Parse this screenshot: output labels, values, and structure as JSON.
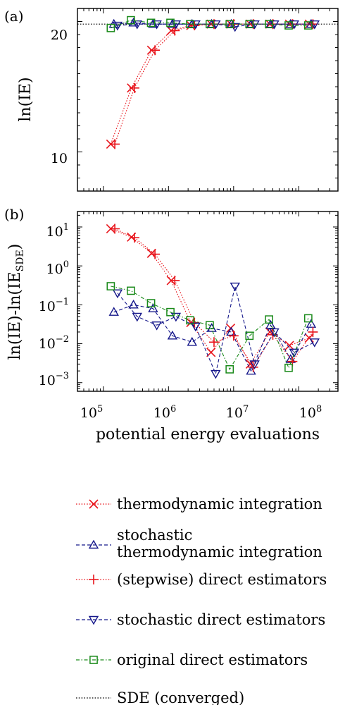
{
  "panel_labels": [
    "(a)",
    "(b)"
  ],
  "x_axis": {
    "label": "potential energy evaluations",
    "ticks": [
      {
        "base": "10",
        "exp": "5"
      },
      {
        "base": "10",
        "exp": "6"
      },
      {
        "base": "10",
        "exp": "7"
      },
      {
        "base": "10",
        "exp": "8"
      }
    ]
  },
  "panel_a": {
    "ylabel": "ln(IE)",
    "yticks": [
      "10",
      "20"
    ]
  },
  "panel_b": {
    "ylabel_main": "ln(IE)-ln(IE",
    "ylabel_sub": "SDE",
    "ylabel_end": ")",
    "yticks": [
      {
        "base": "10",
        "exp": "1"
      },
      {
        "base": "10",
        "exp": "0"
      },
      {
        "base": "10",
        "exp": "−1"
      },
      {
        "base": "10",
        "exp": "−2"
      },
      {
        "base": "10",
        "exp": "−3"
      }
    ]
  },
  "legend": [
    {
      "lines": [
        "thermodynamic integration"
      ],
      "marker": "x",
      "color": "#e8141b",
      "dash": "dot"
    },
    {
      "lines": [
        "stochastic",
        "thermodynamic integration"
      ],
      "marker": "triangle-up",
      "color": "#15178a",
      "dash": "dash"
    },
    {
      "lines": [
        "(stepwise) direct estimators"
      ],
      "marker": "plus",
      "color": "#e8141b",
      "dash": "dot"
    },
    {
      "lines": [
        "stochastic direct estimators"
      ],
      "marker": "triangle-down",
      "color": "#15178a",
      "dash": "dash"
    },
    {
      "lines": [
        "original direct estimators"
      ],
      "marker": "square",
      "color": "#1a8a1a",
      "dash": "dashdot"
    },
    {
      "lines": [
        "SDE (converged)"
      ],
      "marker": "none",
      "color": "#000000",
      "dash": "dot"
    }
  ],
  "chart_data": [
    {
      "panel": "(a)",
      "type": "line",
      "xscale": "log",
      "xlim": [
        40000,
        400000000
      ],
      "ylim": [
        7,
        21
      ],
      "xlabel": "",
      "ylabel": "ln(IE)",
      "reference_line": {
        "name": "SDE (converged)",
        "y": 19.8
      },
      "series": [
        {
          "name": "thermodynamic integration",
          "color": "#e8141b",
          "marker": "x",
          "x": [
            130000,
            270000,
            550000,
            1100000,
            2200000,
            4500000,
            9000000,
            18000000,
            36000000,
            72000000,
            145000000
          ],
          "y": [
            10.6,
            14.9,
            17.8,
            19.3,
            19.7,
            19.8,
            19.8,
            19.8,
            19.8,
            19.8,
            19.8
          ]
        },
        {
          "name": "stochastic thermodynamic integration",
          "color": "#15178a",
          "marker": "triangle-up",
          "x": [
            145000,
            290000,
            580000,
            1150000,
            2300000,
            4600000,
            9200000,
            18500000,
            37000000,
            75000000,
            155000000
          ],
          "y": [
            19.8,
            19.9,
            19.8,
            19.8,
            19.8,
            19.8,
            19.8,
            19.8,
            19.8,
            19.8,
            19.8
          ]
        },
        {
          "name": "(stepwise) direct estimators",
          "color": "#e8141b",
          "marker": "plus",
          "x": [
            150000,
            300000,
            620000,
            1250000,
            2500000,
            5000000,
            10000000,
            20000000,
            40000000,
            80000000,
            165000000
          ],
          "y": [
            10.6,
            14.9,
            17.8,
            19.3,
            19.7,
            19.8,
            19.8,
            19.8,
            19.8,
            19.8,
            19.8
          ]
        },
        {
          "name": "stochastic direct estimators",
          "color": "#15178a",
          "marker": "triangle-down",
          "x": [
            165000,
            330000,
            660000,
            1300000,
            2600000,
            5300000,
            10500000,
            21000000,
            42000000,
            85000000,
            175000000
          ],
          "y": [
            19.7,
            19.8,
            19.8,
            19.8,
            19.8,
            19.8,
            19.6,
            19.8,
            19.8,
            19.8,
            19.8
          ]
        },
        {
          "name": "original direct estimators",
          "color": "#1a8a1a",
          "marker": "square",
          "x": [
            130000,
            265000,
            540000,
            1070000,
            2150000,
            4300000,
            8700000,
            17500000,
            35000000,
            70000000,
            140000000
          ],
          "y": [
            19.5,
            20.1,
            19.9,
            19.9,
            19.8,
            19.8,
            19.8,
            19.8,
            19.8,
            19.7,
            19.7
          ]
        }
      ]
    },
    {
      "panel": "(b)",
      "type": "line",
      "xscale": "log",
      "yscale": "log",
      "xlim": [
        40000,
        400000000
      ],
      "ylim": [
        0.0006,
        25
      ],
      "xlabel": "potential energy evaluations",
      "ylabel": "ln(IE)-ln(IE_SDE)",
      "series": [
        {
          "name": "thermodynamic integration",
          "color": "#e8141b",
          "marker": "x",
          "x": [
            130000,
            270000,
            550000,
            1100000,
            2200000,
            4500000,
            9000000,
            18000000,
            36000000,
            72000000,
            145000000
          ],
          "y": [
            9,
            5.5,
            2.1,
            0.42,
            0.035,
            0.006,
            0.025,
            0.003,
            0.02,
            0.009,
            0.014
          ]
        },
        {
          "name": "stochastic thermodynamic integration",
          "color": "#15178a",
          "marker": "triangle-up",
          "x": [
            145000,
            290000,
            580000,
            1150000,
            2300000,
            4600000,
            9200000,
            18500000,
            37000000,
            75000000,
            155000000
          ],
          "y": [
            0.065,
            0.1,
            0.08,
            0.016,
            0.011,
            0.025,
            0.02,
            0.002,
            0.03,
            0.004,
            0.032
          ]
        },
        {
          "name": "(stepwise) direct estimators",
          "color": "#e8141b",
          "marker": "plus",
          "x": [
            150000,
            300000,
            620000,
            1250000,
            2500000,
            5000000,
            10000000,
            20000000,
            40000000,
            80000000,
            165000000
          ],
          "y": [
            9,
            5.3,
            2.0,
            0.42,
            0.035,
            0.011,
            0.016,
            0.0025,
            0.017,
            0.0035,
            0.02
          ]
        },
        {
          "name": "stochastic direct estimators",
          "color": "#15178a",
          "marker": "triangle-down",
          "x": [
            165000,
            330000,
            660000,
            1300000,
            2600000,
            5300000,
            10500000,
            21000000,
            42000000,
            85000000,
            175000000
          ],
          "y": [
            0.2,
            0.05,
            0.03,
            0.05,
            0.028,
            0.0017,
            0.3,
            0.003,
            0.02,
            0.006,
            0.011
          ]
        },
        {
          "name": "original direct estimators",
          "color": "#1a8a1a",
          "marker": "square",
          "x": [
            130000,
            265000,
            540000,
            1070000,
            2150000,
            4300000,
            8700000,
            17500000,
            35000000,
            70000000,
            140000000
          ],
          "y": [
            0.3,
            0.23,
            0.11,
            0.065,
            0.04,
            0.03,
            0.0022,
            0.016,
            0.042,
            0.0024,
            0.045
          ]
        }
      ]
    }
  ]
}
